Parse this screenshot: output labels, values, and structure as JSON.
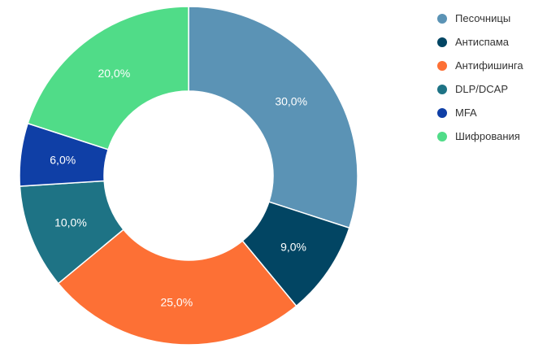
{
  "chart_data": {
    "type": "pie",
    "variant": "donut",
    "legend_position": "top-right",
    "categories": [
      "Песочницы",
      "Антиспама",
      "Антифишинга",
      "DLP/DCAP",
      "MFA",
      "Шифрования"
    ],
    "values": [
      30.0,
      9.0,
      25.0,
      10.0,
      6.0,
      20.0
    ],
    "value_labels": [
      "30,0%",
      "9,0%",
      "25,0%",
      "10,0%",
      "6,0%",
      "20,0%"
    ],
    "colors": [
      "#5b93b5",
      "#024563",
      "#fd7035",
      "#1e7385",
      "#0f3fa6",
      "#50dc88"
    ]
  }
}
